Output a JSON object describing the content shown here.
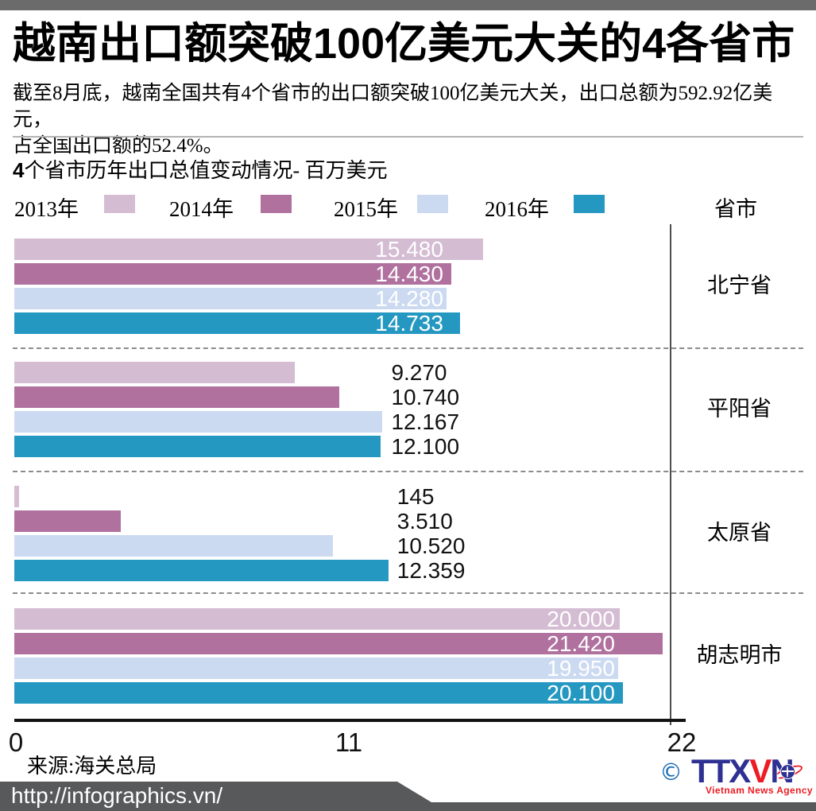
{
  "header": {
    "title_segments": [
      {
        "text": "越南出口额突破",
        "bold": false
      },
      {
        "text": "100",
        "bold": true
      },
      {
        "text": "亿美元大关的",
        "bold": false
      },
      {
        "text": "4",
        "bold": true
      },
      {
        "text": "各省市",
        "bold": false
      }
    ],
    "subtitle_lines": [
      "截至8月底，越南全国共有4个省市的出口额突破100亿美元大关，出口总额为592.92亿美元，",
      "占全国出口额的52.4%。"
    ]
  },
  "chart_data": {
    "type": "bar",
    "orientation": "horizontal",
    "title_segments": [
      {
        "text": "4",
        "bold": true
      },
      {
        "text": "个省市历年出口总值变动情况- 百万美元",
        "bold": false
      }
    ],
    "title": "4个省市历年出口总值变动情况- 百万美元",
    "unit": "百万美元",
    "category_header": "省市",
    "categories": [
      "北宁省",
      "平阳省",
      "太原省",
      "胡志明市"
    ],
    "series": [
      {
        "name": "2013年",
        "color": "#d4bcd3",
        "values": [
          15480,
          9270,
          145,
          20000
        ]
      },
      {
        "name": "2014年",
        "color": "#b0719e",
        "values": [
          14430,
          10740,
          3510,
          21420
        ]
      },
      {
        "name": "2015年",
        "color": "#cbdaf1",
        "values": [
          14280,
          12167,
          10520,
          19950
        ]
      },
      {
        "name": "2016年",
        "color": "#2598c2",
        "values": [
          14733,
          12100,
          12359,
          20100
        ]
      }
    ],
    "groups": [
      {
        "category": "北宁省",
        "value_labels": [
          "15.480",
          "14.430",
          "14.280",
          "14.733"
        ],
        "value_label_position": "inside"
      },
      {
        "category": "平阳省",
        "value_labels": [
          "9.270",
          "10.740",
          "12.167",
          "12.100"
        ],
        "value_label_position": "outside"
      },
      {
        "category": "太原省",
        "value_labels": [
          "145",
          "3.510",
          "10.520",
          "12.359"
        ],
        "value_label_position": "outside"
      },
      {
        "category": "胡志明市",
        "value_labels": [
          "20.000",
          "21.420",
          "19.950",
          "20.100"
        ],
        "value_label_position": "inside"
      }
    ],
    "x_axis": {
      "min": 0,
      "max": 22000,
      "ticks": [
        {
          "label": "0",
          "value": 0
        },
        {
          "label": "11",
          "value": 11000
        },
        {
          "label": "22",
          "value": 22000
        }
      ],
      "grid": false
    },
    "legend_position": "top"
  },
  "source": "来源:海关总局",
  "logo": {
    "copyright": "©",
    "t1": "TTX",
    "t2": "V",
    "t3": "N",
    "tagline": "Vietnam News Agency",
    "blue": "#2e3192",
    "red": "#ec1c24"
  },
  "footer": {
    "url": "http://infographics.vn/"
  }
}
